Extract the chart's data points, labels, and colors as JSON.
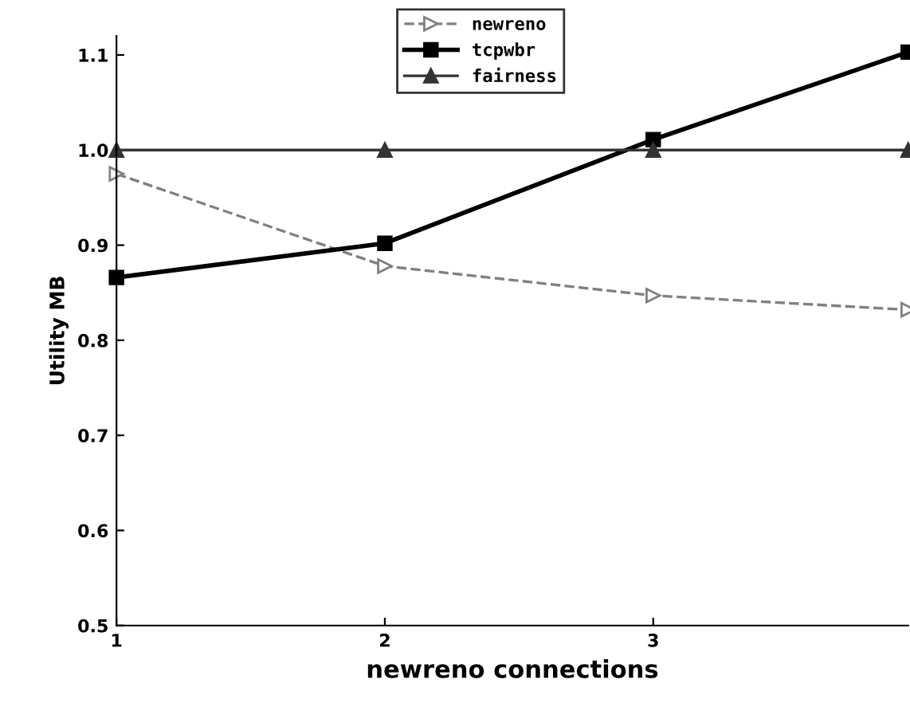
{
  "chart_data": {
    "type": "line",
    "xlabel": "newreno connections",
    "ylabel": "Utility MB",
    "x": [
      1,
      2,
      3,
      3.95
    ],
    "series": [
      {
        "name": "newreno",
        "color": "#808080",
        "line_style": "dashed",
        "marker": "triangle",
        "values": [
          0.975,
          0.878,
          0.847,
          0.832
        ]
      },
      {
        "name": "tcpwbr",
        "color": "#000000",
        "line_style": "solid",
        "marker": "square",
        "values": [
          0.866,
          0.902,
          1.011,
          1.103
        ]
      },
      {
        "name": "fairness",
        "color": "#333333",
        "line_style": "solid",
        "marker": "triangle",
        "values": [
          1.0,
          1.0,
          1.0,
          1.0
        ]
      }
    ],
    "xlim": [
      1,
      3.95
    ],
    "xticks": [
      1,
      2,
      3
    ],
    "ylim": [
      0.5,
      1.12
    ],
    "yticks": [
      0.5,
      0.6,
      0.7,
      0.8,
      0.9,
      {
        "value": 1.0,
        "label": "1.0"
      },
      1.1
    ],
    "grid": false,
    "legend": "top"
  }
}
